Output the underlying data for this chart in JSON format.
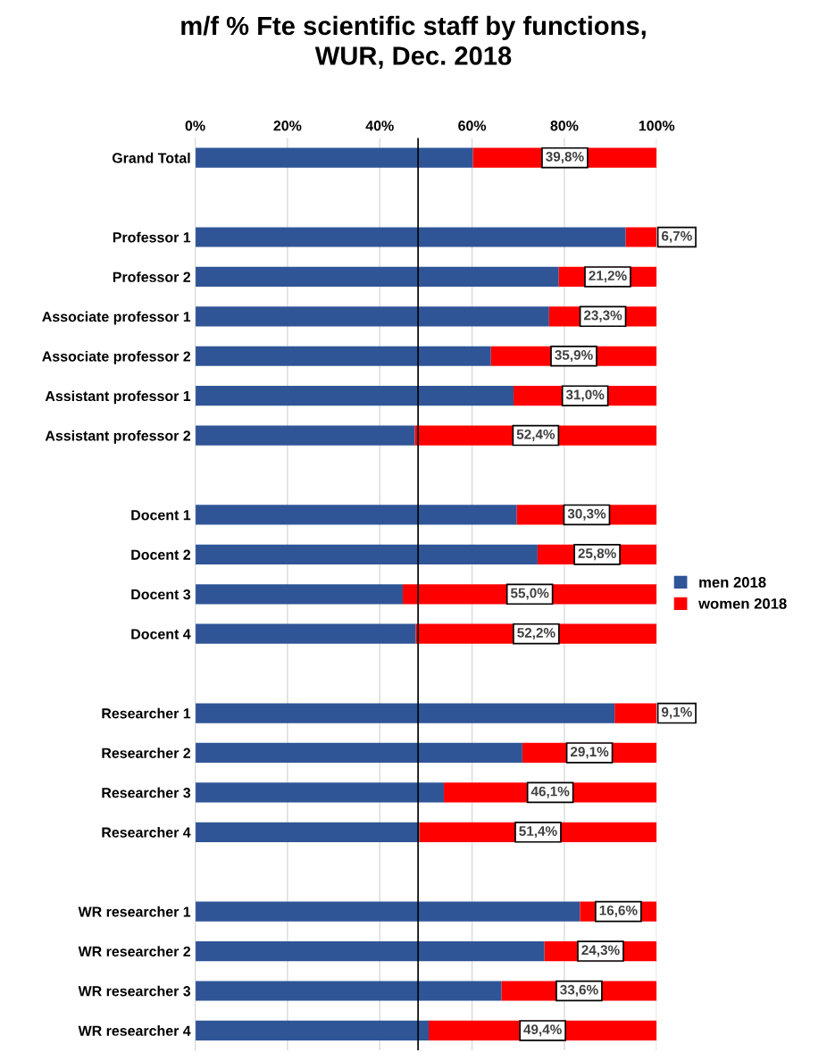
{
  "chart_data": {
    "type": "bar",
    "orientation": "horizontal",
    "stacked": true,
    "title": "m/f % Fte scientific staff by functions,\nWUR, Dec. 2018",
    "categories": [
      "Grand Total",
      null,
      "Professor 1",
      "Professor 2",
      "Associate professor 1",
      "Associate professor 2",
      "Assistant professor 1",
      "Assistant professor 2",
      null,
      "Docent 1",
      "Docent 2",
      "Docent 3",
      "Docent 4",
      null,
      "Researcher 1",
      "Researcher 2",
      "Researcher 3",
      "Researcher 4",
      null,
      "WR researcher 1",
      "WR researcher 2",
      "WR researcher 3",
      "WR researcher 4"
    ],
    "series": [
      {
        "name": "men 2018",
        "color": "#2f5597",
        "values": [
          60.2,
          null,
          93.3,
          78.8,
          76.7,
          64.1,
          69.0,
          47.6,
          null,
          69.7,
          74.2,
          45.0,
          47.8,
          null,
          90.9,
          70.9,
          53.9,
          48.6,
          null,
          83.4,
          75.7,
          66.4,
          50.6
        ]
      },
      {
        "name": "women 2018",
        "color": "#ff0000",
        "values": [
          39.8,
          null,
          6.7,
          21.2,
          23.3,
          35.9,
          31.0,
          52.4,
          null,
          30.3,
          25.8,
          55.0,
          52.2,
          null,
          9.1,
          29.1,
          46.1,
          51.4,
          null,
          16.6,
          24.3,
          33.6,
          49.4
        ],
        "value_labels": [
          "39,8%",
          null,
          "6,7%",
          "21,2%",
          "23,3%",
          "35,9%",
          "31,0%",
          "52,4%",
          null,
          "30,3%",
          "25,8%",
          "55,0%",
          "52,2%",
          null,
          "9,1%",
          "29,1%",
          "46,1%",
          "51,4%",
          null,
          "16,6%",
          "24,3%",
          "33,6%",
          "49,4%"
        ]
      }
    ],
    "xlim": [
      0,
      100
    ],
    "xticks": [
      {
        "value": 0,
        "label": "0%"
      },
      {
        "value": 20,
        "label": "20%"
      },
      {
        "value": 40,
        "label": "40%"
      },
      {
        "value": 60,
        "label": "60%"
      },
      {
        "value": 80,
        "label": "80%"
      },
      {
        "value": 100,
        "label": "100%"
      }
    ],
    "ref_lines": [
      {
        "axis": "x",
        "value": 48.3,
        "color": "#000000"
      }
    ],
    "grid": "x",
    "legend": "right"
  }
}
